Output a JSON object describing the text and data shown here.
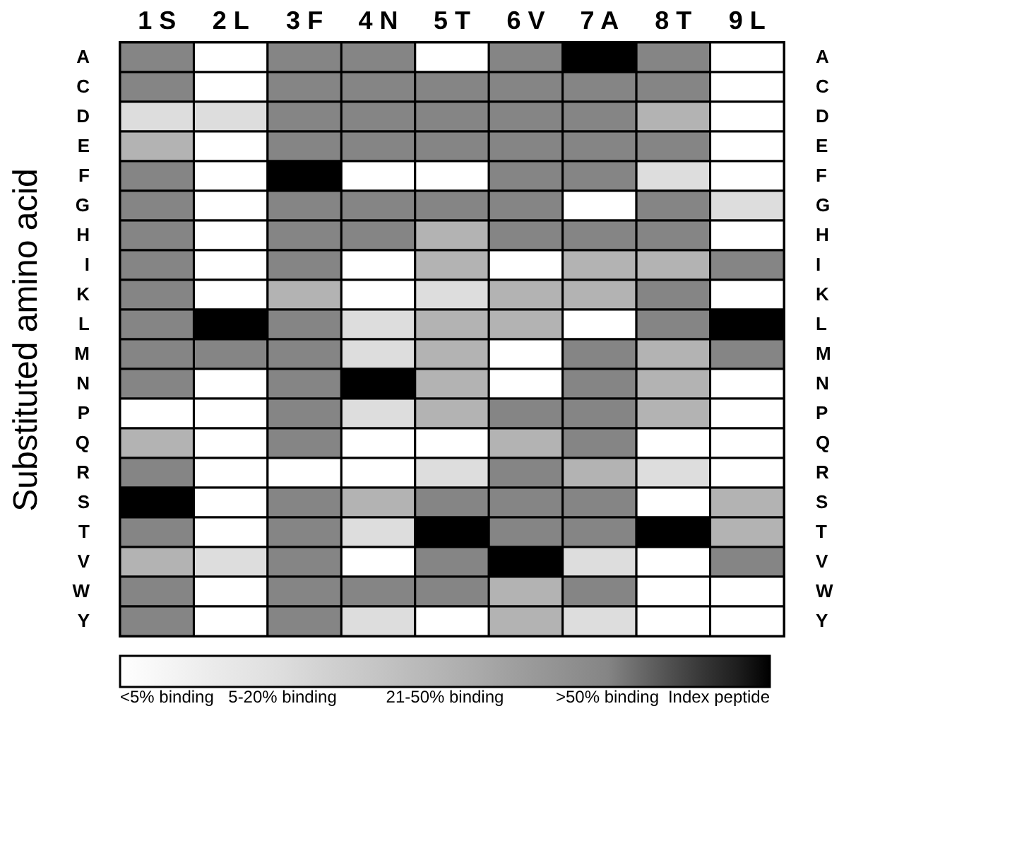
{
  "chart_data": {
    "type": "heatmap",
    "ylabel": "Substituted amino acid",
    "categories": [
      "1\nS",
      "2\nL",
      "3\nF",
      "4\nN",
      "5\nT",
      "6\nV",
      "7\nA",
      "8\nT",
      "9\nL"
    ],
    "y_categories": [
      "A",
      "C",
      "D",
      "E",
      "F",
      "G",
      "H",
      "I",
      "K",
      "L",
      "M",
      "N",
      "P",
      "Q",
      "R",
      "S",
      "T",
      "V",
      "W",
      "Y"
    ],
    "y2_categories": [
      "A",
      "C",
      "D",
      "E",
      "F",
      "G",
      "H",
      "I",
      "K",
      "L",
      "M",
      "N",
      "P",
      "Q",
      "R",
      "S",
      "T",
      "V",
      "W",
      "Y"
    ],
    "cells": [
      [
        3,
        0,
        3,
        3,
        0,
        3,
        4,
        3,
        0
      ],
      [
        3,
        0,
        3,
        3,
        3,
        3,
        3,
        3,
        0
      ],
      [
        1,
        1,
        3,
        3,
        3,
        3,
        3,
        2,
        0
      ],
      [
        2,
        0,
        3,
        3,
        3,
        3,
        3,
        3,
        0
      ],
      [
        3,
        0,
        4,
        0,
        0,
        3,
        3,
        1,
        0
      ],
      [
        3,
        0,
        3,
        3,
        3,
        3,
        0,
        3,
        1
      ],
      [
        3,
        0,
        3,
        3,
        2,
        3,
        3,
        3,
        0
      ],
      [
        3,
        0,
        3,
        0,
        2,
        0,
        2,
        2,
        3
      ],
      [
        3,
        0,
        2,
        0,
        1,
        2,
        2,
        3,
        0
      ],
      [
        3,
        4,
        3,
        1,
        2,
        2,
        0,
        3,
        4
      ],
      [
        3,
        3,
        3,
        1,
        2,
        0,
        3,
        2,
        3
      ],
      [
        3,
        0,
        3,
        4,
        2,
        0,
        3,
        2,
        0
      ],
      [
        0,
        0,
        3,
        1,
        2,
        3,
        3,
        2,
        0
      ],
      [
        2,
        0,
        3,
        0,
        0,
        2,
        3,
        0,
        0
      ],
      [
        3,
        0,
        0,
        0,
        1,
        3,
        2,
        1,
        0
      ],
      [
        4,
        0,
        3,
        2,
        3,
        3,
        3,
        0,
        2
      ],
      [
        3,
        0,
        3,
        1,
        4,
        3,
        3,
        4,
        2
      ],
      [
        2,
        1,
        3,
        0,
        3,
        4,
        1,
        0,
        3
      ],
      [
        3,
        0,
        3,
        3,
        3,
        2,
        3,
        0,
        0
      ],
      [
        3,
        0,
        3,
        1,
        0,
        2,
        1,
        0,
        0
      ]
    ],
    "clim": [
      0,
      4
    ],
    "cticks": [
      {
        "value": 0,
        "label": "<5% binding"
      },
      {
        "value": 1,
        "label": "5-20% binding"
      },
      {
        "value": 2,
        "label": "21-50% binding"
      },
      {
        "value": 3,
        "label": ">50% binding"
      },
      {
        "value": 4,
        "label": "Index peptide"
      }
    ]
  }
}
